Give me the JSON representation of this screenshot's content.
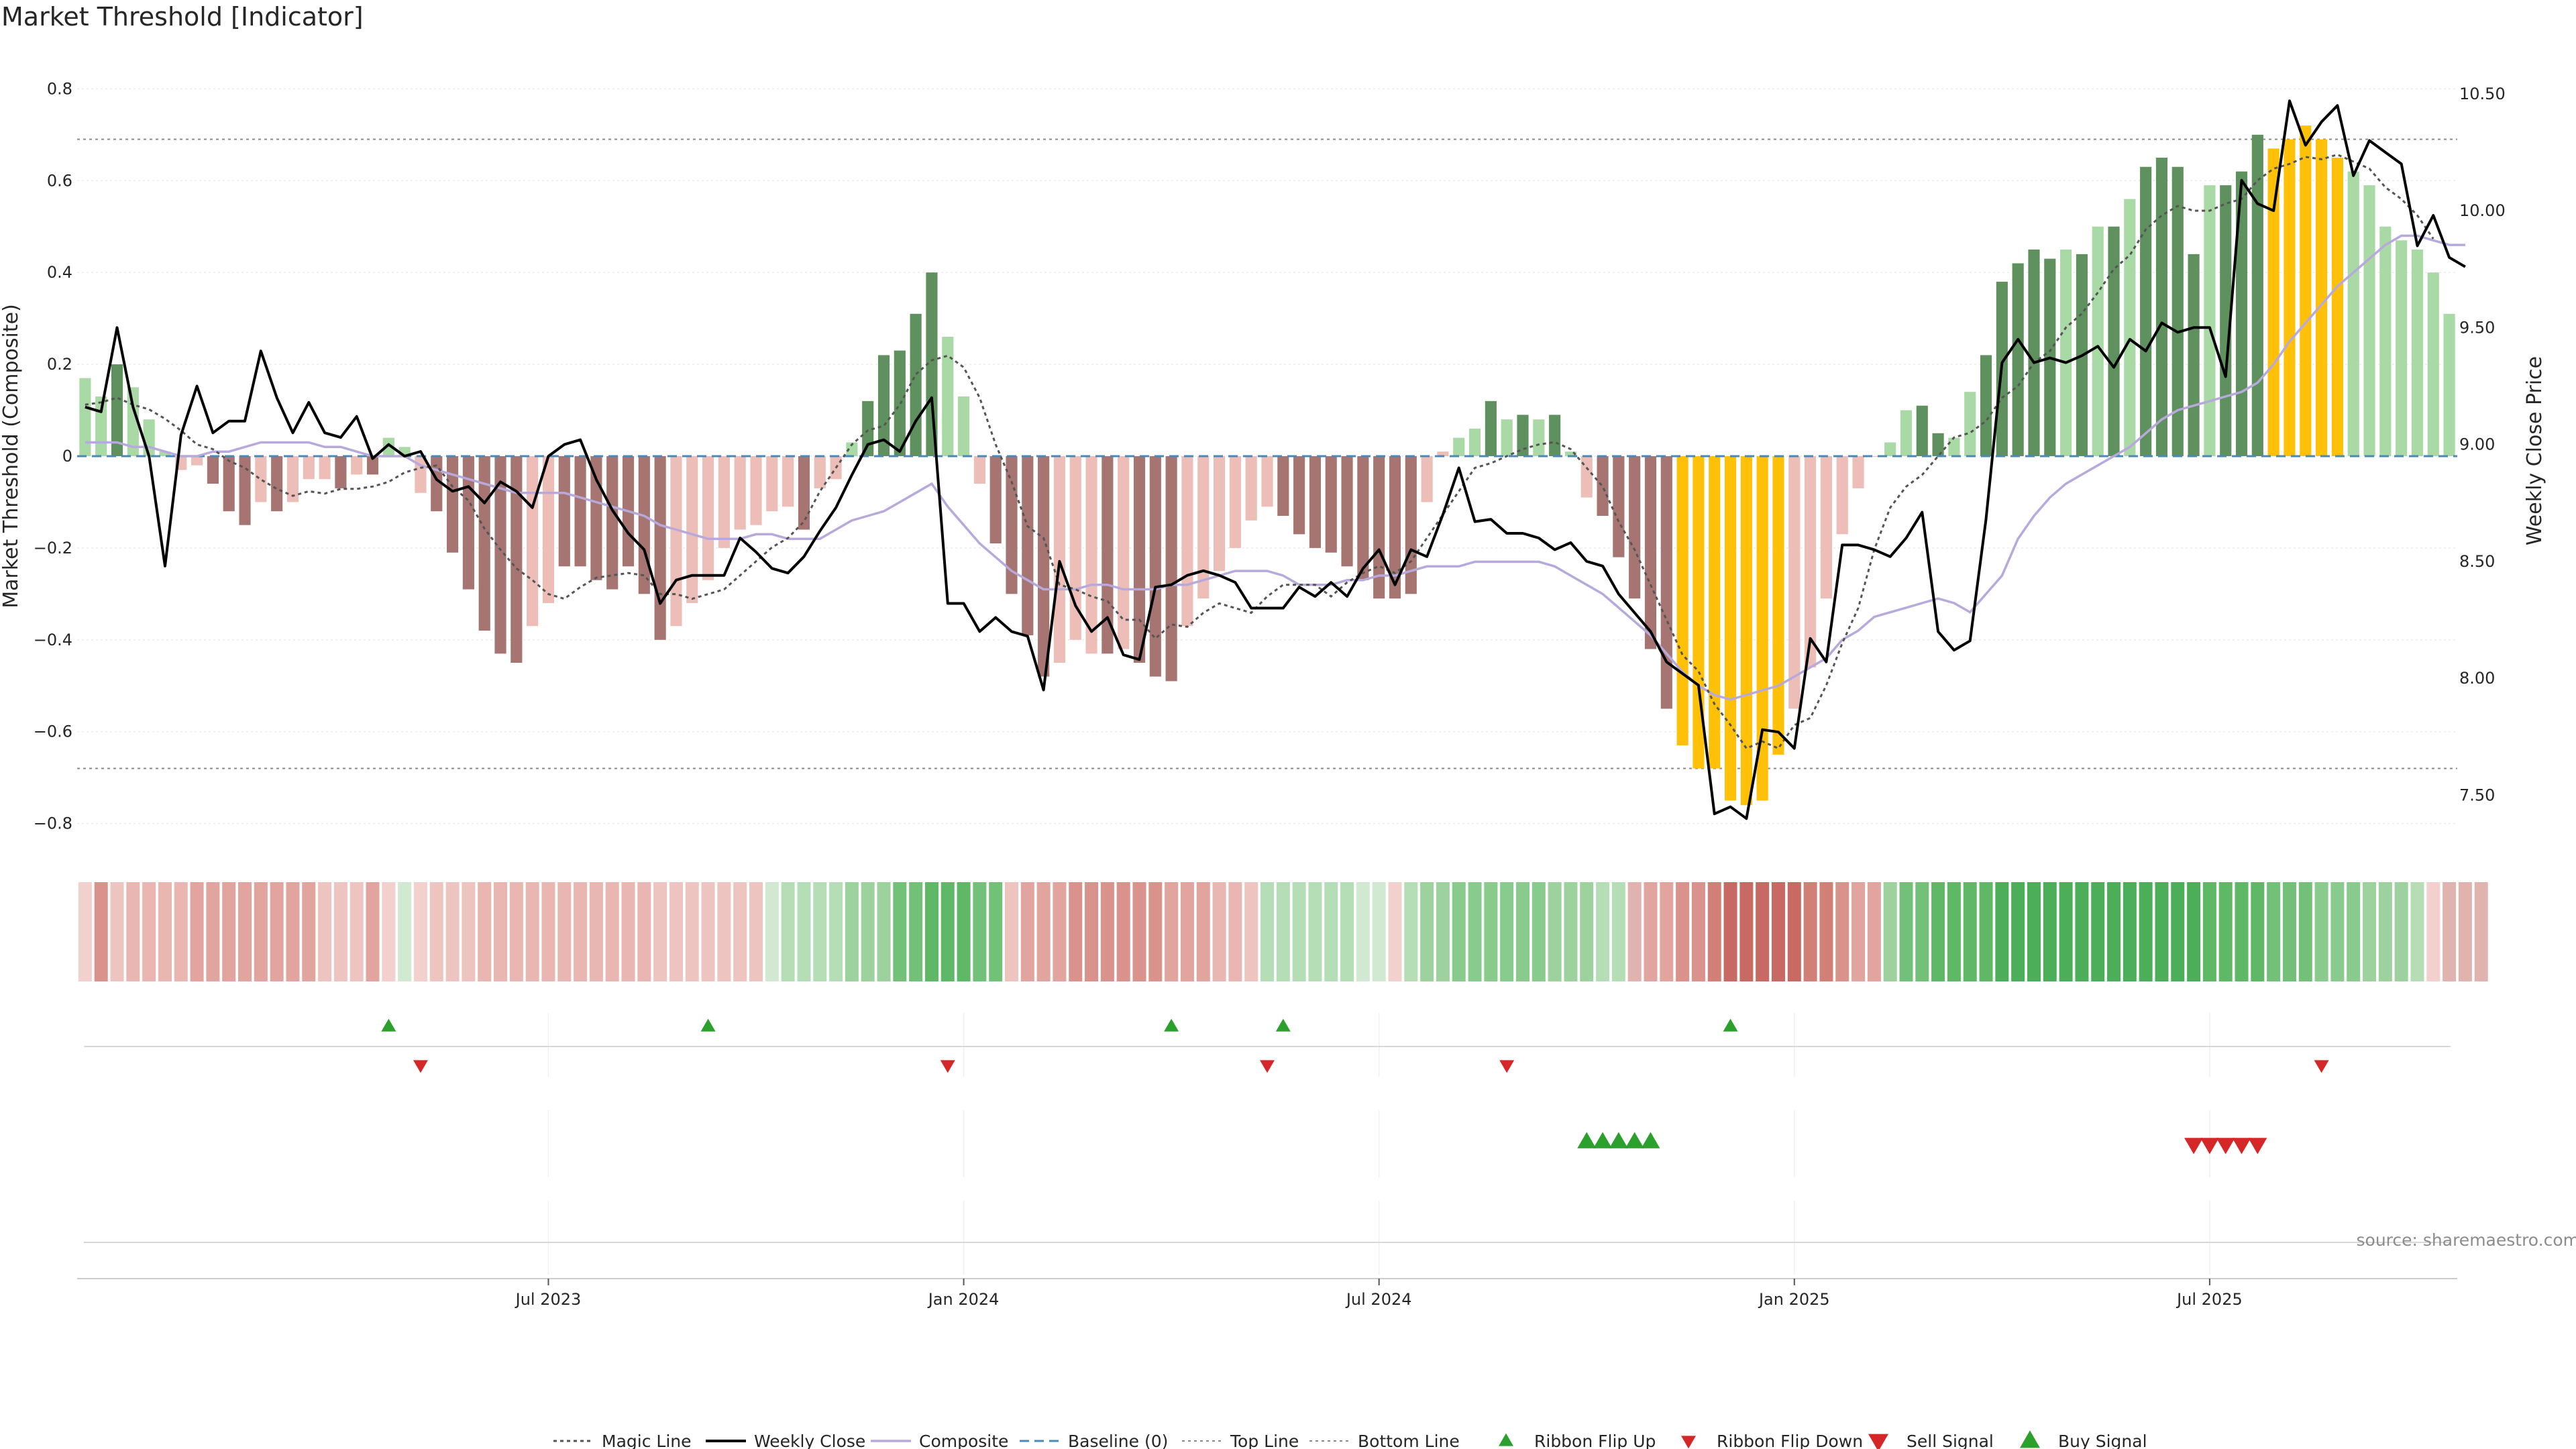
{
  "chart_data": {
    "type": "bar",
    "title": "Market Threshold [Indicator]",
    "ylabel": "Market Threshold (Composite)",
    "ylabel_right": "Weekly Close Price",
    "ylim": [
      -0.84,
      0.84
    ],
    "ylim_right": [
      7.3,
      10.6
    ],
    "yticks": [
      "0.8",
      "0.6",
      "0.4",
      "0.2",
      "0",
      "−0.2",
      "−0.4",
      "−0.6",
      "−0.8"
    ],
    "yticks_right": [
      "10.50",
      "10.00",
      "9.50",
      "9.00",
      "8.50",
      "8.00",
      "7.50"
    ],
    "x_ticks": [
      {
        "label": "Jul 2023",
        "week": 29
      },
      {
        "label": "Jan 2024",
        "week": 55
      },
      {
        "label": "Jul 2024",
        "week": 81
      },
      {
        "label": "Jan 2025",
        "week": 107
      },
      {
        "label": "Jul 2025",
        "week": 133
      }
    ],
    "top_line": 0.69,
    "bottom_line": -0.68,
    "composite_values": [
      0.17,
      0.13,
      0.2,
      0.15,
      0.08,
      0.01,
      -0.03,
      -0.02,
      -0.06,
      -0.12,
      -0.15,
      -0.1,
      -0.12,
      -0.1,
      -0.05,
      -0.05,
      -0.07,
      -0.04,
      -0.04,
      0.04,
      0.02,
      -0.08,
      -0.12,
      -0.21,
      -0.29,
      -0.38,
      -0.43,
      -0.45,
      -0.37,
      -0.32,
      -0.24,
      -0.24,
      -0.27,
      -0.29,
      -0.24,
      -0.3,
      -0.4,
      -0.37,
      -0.32,
      -0.27,
      -0.2,
      -0.16,
      -0.15,
      -0.12,
      -0.11,
      -0.16,
      -0.07,
      -0.05,
      0.03,
      0.12,
      0.22,
      0.23,
      0.31,
      0.4,
      0.26,
      0.13,
      -0.06,
      -0.19,
      -0.3,
      -0.39,
      -0.48,
      -0.45,
      -0.4,
      -0.43,
      -0.43,
      -0.42,
      -0.45,
      -0.48,
      -0.49,
      -0.37,
      -0.31,
      -0.25,
      -0.2,
      -0.14,
      -0.11,
      -0.13,
      -0.17,
      -0.2,
      -0.21,
      -0.24,
      -0.27,
      -0.31,
      -0.31,
      -0.3,
      -0.1,
      0.01,
      0.04,
      0.06,
      0.12,
      0.08,
      0.09,
      0.08,
      0.09,
      0.01,
      -0.09,
      -0.13,
      -0.22,
      -0.31,
      -0.42,
      -0.55,
      -0.63,
      -0.68,
      -0.68,
      -0.75,
      -0.76,
      -0.75,
      -0.65,
      -0.55,
      -0.46,
      -0.31,
      -0.17,
      -0.07,
      0.0,
      0.03,
      0.1,
      0.11,
      0.05,
      0.04,
      0.14,
      0.22,
      0.38,
      0.42,
      0.45,
      0.43,
      0.45,
      0.44,
      0.5,
      0.5,
      0.56,
      0.63,
      0.65,
      0.63,
      0.44,
      0.59,
      0.59,
      0.62,
      0.7,
      0.67,
      0.69,
      0.72,
      0.69,
      0.65,
      0.62,
      0.59,
      0.5,
      0.47,
      0.45,
      0.4,
      0.31
    ],
    "bar_colors": [
      "#a9d9a5",
      "#a9d9a5",
      "#5e915e",
      "#a9d9a5",
      "#a9d9a5",
      "#a9d9a5",
      "#ecbeb7",
      "#ecbeb7",
      "#a67572",
      "#a67572",
      "#a67572",
      "#ecbeb7",
      "#a67572",
      "#ecbeb7",
      "#ecbeb7",
      "#ecbeb7",
      "#a67572",
      "#ecbeb7",
      "#a67572",
      "#a9d9a5",
      "#a9d9a5",
      "#ecbeb7",
      "#a67572",
      "#a67572",
      "#a67572",
      "#a67572",
      "#a67572",
      "#a67572",
      "#ecbeb7",
      "#ecbeb7",
      "#a67572",
      "#a67572",
      "#a67572",
      "#a67572",
      "#a67572",
      "#a67572",
      "#a67572",
      "#ecbeb7",
      "#ecbeb7",
      "#ecbeb7",
      "#ecbeb7",
      "#ecbeb7",
      "#ecbeb7",
      "#ecbeb7",
      "#ecbeb7",
      "#a67572",
      "#ecbeb7",
      "#ecbeb7",
      "#a9d9a5",
      "#5e915e",
      "#5e915e",
      "#5e915e",
      "#5e915e",
      "#5e915e",
      "#a9d9a5",
      "#a9d9a5",
      "#ecbeb7",
      "#a67572",
      "#a67572",
      "#a67572",
      "#a67572",
      "#ecbeb7",
      "#ecbeb7",
      "#ecbeb7",
      "#a67572",
      "#ecbeb7",
      "#a67572",
      "#a67572",
      "#a67572",
      "#ecbeb7",
      "#ecbeb7",
      "#ecbeb7",
      "#ecbeb7",
      "#ecbeb7",
      "#ecbeb7",
      "#a67572",
      "#a67572",
      "#a67572",
      "#a67572",
      "#a67572",
      "#a67572",
      "#a67572",
      "#a67572",
      "#a67572",
      "#ecbeb7",
      "#ecbeb7",
      "#a9d9a5",
      "#a9d9a5",
      "#5e915e",
      "#a9d9a5",
      "#5e915e",
      "#a9d9a5",
      "#5e915e",
      "#a9d9a5",
      "#ecbeb7",
      "#a67572",
      "#a67572",
      "#a67572",
      "#a67572",
      "#a67572",
      "#ffc107",
      "#ffc107",
      "#ffc107",
      "#ffc107",
      "#ffc107",
      "#ffc107",
      "#ffc107",
      "#ecbeb7",
      "#ecbeb7",
      "#ecbeb7",
      "#ecbeb7",
      "#ecbeb7",
      "#ecbeb7",
      "#a9d9a5",
      "#a9d9a5",
      "#5e915e",
      "#5e915e",
      "#a9d9a5",
      "#a9d9a5",
      "#5e915e",
      "#5e915e",
      "#5e915e",
      "#5e915e",
      "#5e915e",
      "#a9d9a5",
      "#5e915e",
      "#a9d9a5",
      "#5e915e",
      "#a9d9a5",
      "#5e915e",
      "#5e915e",
      "#5e915e",
      "#5e915e",
      "#a9d9a5",
      "#5e915e",
      "#5e915e",
      "#5e915e",
      "#ffc107",
      "#ffc107",
      "#ffc107",
      "#ffc107",
      "#ffc107",
      "#a9d9a5",
      "#a9d9a5",
      "#a9d9a5",
      "#a9d9a5",
      "#a9d9a5",
      "#a9d9a5",
      "#a9d9a5",
      "#a9d9a5"
    ],
    "weekly_close": [
      9.16,
      9.14,
      9.5,
      9.16,
      8.95,
      8.48,
      9.04,
      9.25,
      9.05,
      9.1,
      9.1,
      9.4,
      9.2,
      9.05,
      9.18,
      9.05,
      9.03,
      9.12,
      8.94,
      9.0,
      8.95,
      8.97,
      8.85,
      8.8,
      8.82,
      8.75,
      8.84,
      8.8,
      8.73,
      8.95,
      9.0,
      9.02,
      8.85,
      8.72,
      8.62,
      8.55,
      8.32,
      8.42,
      8.44,
      8.44,
      8.44,
      8.6,
      8.54,
      8.47,
      8.45,
      8.52,
      8.63,
      8.73,
      8.87,
      9.0,
      9.02,
      8.97,
      9.1,
      9.2,
      8.32,
      8.32,
      8.2,
      8.26,
      8.2,
      8.18,
      7.95,
      8.5,
      8.31,
      8.2,
      8.26,
      8.1,
      8.08,
      8.39,
      8.4,
      8.44,
      8.46,
      8.44,
      8.41,
      8.3,
      8.3,
      8.3,
      8.39,
      8.35,
      8.41,
      8.35,
      8.47,
      8.55,
      8.4,
      8.55,
      8.52,
      8.7,
      8.9,
      8.67,
      8.68,
      8.62,
      8.62,
      8.6,
      8.55,
      8.58,
      8.5,
      8.48,
      8.36,
      8.28,
      8.2,
      8.07,
      8.02,
      7.97,
      7.42,
      7.45,
      7.4,
      7.78,
      7.77,
      7.7,
      8.17,
      8.07,
      8.57,
      8.57,
      8.55,
      8.52,
      8.6,
      8.71,
      8.2,
      8.12,
      8.16,
      8.68,
      9.35,
      9.45,
      9.35,
      9.37,
      9.35,
      9.38,
      9.42,
      9.33,
      9.45,
      9.4,
      9.52,
      9.48,
      9.5,
      9.5,
      9.29,
      10.13,
      10.03,
      10.0,
      10.47,
      10.28,
      10.38,
      10.45,
      10.15,
      10.3,
      10.25,
      10.2,
      9.85,
      9.98,
      9.8,
      9.76
    ],
    "magic_line": [
      9.17,
      9.18,
      9.2,
      9.17,
      9.15,
      9.11,
      9.06,
      9.0,
      8.98,
      8.93,
      8.9,
      8.85,
      8.81,
      8.78,
      8.8,
      8.79,
      8.81,
      8.81,
      8.82,
      8.84,
      8.88,
      8.9,
      8.91,
      8.82,
      8.76,
      8.64,
      8.55,
      8.47,
      8.42,
      8.36,
      8.34,
      8.39,
      8.43,
      8.44,
      8.45,
      8.44,
      8.36,
      8.36,
      8.34,
      8.36,
      8.38,
      8.44,
      8.5,
      8.56,
      8.6,
      8.67,
      8.8,
      8.9,
      9.0,
      9.06,
      9.08,
      9.17,
      9.3,
      9.36,
      9.38,
      9.33,
      9.2,
      9.0,
      8.84,
      8.65,
      8.6,
      8.4,
      8.38,
      8.35,
      8.33,
      8.25,
      8.25,
      8.17,
      8.23,
      8.22,
      8.28,
      8.32,
      8.3,
      8.28,
      8.35,
      8.4,
      8.4,
      8.4,
      8.35,
      8.41,
      8.45,
      8.48,
      8.45,
      8.5,
      8.6,
      8.7,
      8.8,
      8.9,
      8.92,
      8.95,
      8.98,
      9.0,
      9.01,
      8.98,
      8.9,
      8.82,
      8.67,
      8.55,
      8.4,
      8.25,
      8.1,
      8.03,
      7.89,
      7.8,
      7.7,
      7.73,
      7.7,
      7.8,
      7.83,
      7.97,
      8.15,
      8.3,
      8.55,
      8.73,
      8.82,
      8.87,
      8.95,
      9.03,
      9.05,
      9.1,
      9.2,
      9.25,
      9.35,
      9.4,
      9.5,
      9.56,
      9.65,
      9.75,
      9.81,
      9.92,
      9.98,
      10.02,
      10.0,
      10.0,
      10.03,
      10.05,
      10.13,
      10.18,
      10.2,
      10.23,
      10.22,
      10.24,
      10.21,
      10.18,
      10.1,
      10.05,
      9.98,
      9.88
    ],
    "composite_line": [
      0.03,
      0.03,
      0.03,
      0.02,
      0.02,
      0.01,
      0.0,
      0.0,
      0.01,
      0.01,
      0.02,
      0.03,
      0.03,
      0.03,
      0.03,
      0.02,
      0.02,
      0.01,
      0.0,
      0.0,
      0.0,
      -0.02,
      -0.03,
      -0.04,
      -0.05,
      -0.06,
      -0.07,
      -0.08,
      -0.08,
      -0.08,
      -0.08,
      -0.09,
      -0.1,
      -0.11,
      -0.12,
      -0.13,
      -0.15,
      -0.16,
      -0.17,
      -0.18,
      -0.18,
      -0.18,
      -0.17,
      -0.17,
      -0.18,
      -0.18,
      -0.18,
      -0.16,
      -0.14,
      -0.13,
      -0.12,
      -0.1,
      -0.08,
      -0.06,
      -0.11,
      -0.15,
      -0.19,
      -0.22,
      -0.25,
      -0.27,
      -0.29,
      -0.29,
      -0.29,
      -0.28,
      -0.28,
      -0.29,
      -0.29,
      -0.29,
      -0.28,
      -0.28,
      -0.27,
      -0.26,
      -0.25,
      -0.25,
      -0.25,
      -0.26,
      -0.28,
      -0.28,
      -0.28,
      -0.27,
      -0.27,
      -0.26,
      -0.26,
      -0.25,
      -0.24,
      -0.24,
      -0.24,
      -0.23,
      -0.23,
      -0.23,
      -0.23,
      -0.23,
      -0.24,
      -0.26,
      -0.28,
      -0.3,
      -0.33,
      -0.36,
      -0.39,
      -0.43,
      -0.47,
      -0.5,
      -0.52,
      -0.53,
      -0.52,
      -0.51,
      -0.5,
      -0.48,
      -0.46,
      -0.44,
      -0.4,
      -0.38,
      -0.35,
      -0.34,
      -0.33,
      -0.32,
      -0.31,
      -0.32,
      -0.34,
      -0.3,
      -0.26,
      -0.18,
      -0.13,
      -0.09,
      -0.06,
      -0.04,
      -0.02,
      0.0,
      0.02,
      0.05,
      0.08,
      0.1,
      0.11,
      0.12,
      0.13,
      0.14,
      0.16,
      0.2,
      0.25,
      0.29,
      0.33,
      0.37,
      0.4,
      0.43,
      0.46,
      0.48,
      0.48,
      0.47,
      0.46,
      0.46
    ],
    "ribbon_colors": [
      "#f2d0cd",
      "#d9928c",
      "#eec4c0",
      "#e9b6b1",
      "#e9b6b1",
      "#e9b6b1",
      "#e9b6b1",
      "#e1a49f",
      "#e1a49f",
      "#e1a49f",
      "#e1a49f",
      "#e1a49f",
      "#e1a49f",
      "#e1a49f",
      "#e1a49f",
      "#eec4c0",
      "#eec4c0",
      "#eec4c0",
      "#e1a49f",
      "#f2d0cd",
      "#d0e9d0",
      "#f2d0cd",
      "#eec4c0",
      "#eec4c0",
      "#eec4c0",
      "#e9b6b1",
      "#e9b6b1",
      "#e9b6b1",
      "#e9b6b1",
      "#e9b6b1",
      "#e9b6b1",
      "#e9b6b1",
      "#e9b6b1",
      "#e9b6b1",
      "#e9b6b1",
      "#e9b6b1",
      "#eec4c0",
      "#eec4c0",
      "#eec4c0",
      "#eec4c0",
      "#eec4c0",
      "#eec4c0",
      "#eec4c0",
      "#d0e9d0",
      "#b6deb6",
      "#b6deb6",
      "#b6deb6",
      "#b6deb6",
      "#9dd29e",
      "#9dd29e",
      "#9dd29e",
      "#73c179",
      "#73c179",
      "#5eb866",
      "#5eb866",
      "#5eb866",
      "#73c179",
      "#73c179",
      "#eec4c0",
      "#e1a49f",
      "#e1a49f",
      "#e1a49f",
      "#d9928c",
      "#d9928c",
      "#d9928c",
      "#d9928c",
      "#d9928c",
      "#d9928c",
      "#e1a49f",
      "#e1a49f",
      "#e1a49f",
      "#e9b6b1",
      "#e9b6b1",
      "#eec4c0",
      "#b6deb6",
      "#b6deb6",
      "#b6deb6",
      "#b6deb6",
      "#b6deb6",
      "#b6deb6",
      "#d0e9d0",
      "#d0e9d0",
      "#f2d0cd",
      "#b6deb6",
      "#9dd29e",
      "#9dd29e",
      "#88cb8c",
      "#88cb8c",
      "#88cb8c",
      "#88cb8c",
      "#88cb8c",
      "#88cb8c",
      "#9dd29e",
      "#9dd29e",
      "#9dd29e",
      "#b6deb6",
      "#b6deb6",
      "#e1b3ae",
      "#e1a49f",
      "#e1a49f",
      "#d9928c",
      "#d9928c",
      "#d18078",
      "#c86a63",
      "#c86a63",
      "#c86a63",
      "#c86a63",
      "#c86a63",
      "#d18078",
      "#d18078",
      "#d9928c",
      "#e1a49f",
      "#e1a49f",
      "#9dd29e",
      "#73c179",
      "#73c179",
      "#5eb866",
      "#5eb866",
      "#5eb866",
      "#5eb866",
      "#4cae58",
      "#4cae58",
      "#4cae58",
      "#4cae58",
      "#4cae58",
      "#4cae58",
      "#4cae58",
      "#4cae58",
      "#4cae58",
      "#4cae58",
      "#4cae58",
      "#4cae58",
      "#4cae58",
      "#5eb866",
      "#5eb866",
      "#5eb866",
      "#5eb866",
      "#73c179",
      "#73c179",
      "#73c179",
      "#88cb8c",
      "#88cb8c",
      "#88cb8c",
      "#9dd29e",
      "#9dd29e",
      "#9dd29e",
      "#b6deb6",
      "#f2d0cd",
      "#e1b3ae",
      "#e1b3ae",
      "#e1b3ae"
    ],
    "ribbon_flip_up_weeks": [
      19,
      39,
      68,
      75,
      103
    ],
    "ribbon_flip_down_weeks": [
      21,
      54,
      74,
      89,
      140
    ],
    "buy_signal_weeks": [
      94,
      95,
      96,
      97,
      98
    ],
    "sell_signal_weeks": [
      132,
      133,
      134,
      135,
      136
    ],
    "legend": [
      {
        "label": "Magic Line",
        "kind": "dotted",
        "color": "#555555"
      },
      {
        "label": "Weekly Close",
        "kind": "solid",
        "color": "#000000"
      },
      {
        "label": "Composite",
        "kind": "solid",
        "color": "#b8a9dc"
      },
      {
        "label": "Baseline (0)",
        "kind": "dashed",
        "color": "#4a88b8"
      },
      {
        "label": "Top Line",
        "kind": "dotted-light",
        "color": "#888888"
      },
      {
        "label": "Bottom Line",
        "kind": "dotted-light",
        "color": "#888888"
      },
      {
        "label": "Ribbon Flip Up",
        "kind": "marker-up",
        "color": "#2ca02c"
      },
      {
        "label": "Ribbon Flip Down",
        "kind": "marker-down",
        "color": "#d62728"
      },
      {
        "label": "Sell Signal",
        "kind": "marker-down-big",
        "color": "#d62728"
      },
      {
        "label": "Buy Signal",
        "kind": "marker-up-big",
        "color": "#2ca02c"
      }
    ],
    "source": "source: sharemaestro.com"
  }
}
